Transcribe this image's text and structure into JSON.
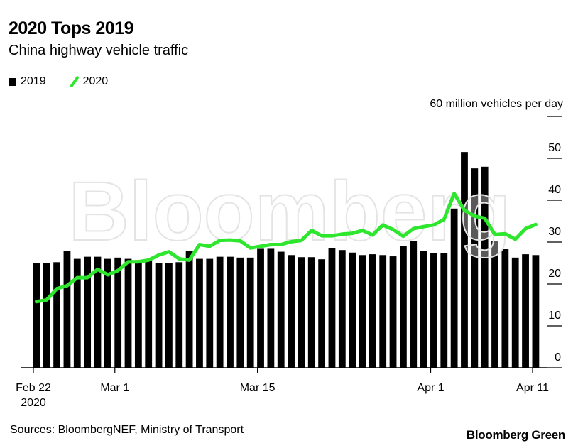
{
  "header": {
    "title": "2020 Tops 2019",
    "subtitle": "China highway vehicle traffic"
  },
  "footer": {
    "source": "Sources: BloombergNEF, Ministry of Transport",
    "brand": "Bloomberg Green"
  },
  "watermark": "Bloomberg",
  "colors": {
    "bars_2019": "#000000",
    "line_2020": "#2ee62e",
    "grid": "#000000"
  },
  "chart_data": {
    "type": "bar+line",
    "title": "2020 Tops 2019",
    "subtitle": "China highway vehicle traffic",
    "ylabel": "60 million vehicles per day",
    "ylim": [
      0,
      60
    ],
    "yticks": [
      0,
      10,
      20,
      30,
      40,
      50,
      60
    ],
    "ytick_labels": [
      "0",
      "10",
      "20",
      "30",
      "40",
      "50",
      "60 million vehicles per day"
    ],
    "x_start": "2020-02-22",
    "x_end": "2020-04-11",
    "xticks": [
      {
        "date": "2020-02-22",
        "label": "Feb 22",
        "sublabel": "2020"
      },
      {
        "date": "2020-03-01",
        "label": "Mar 1"
      },
      {
        "date": "2020-03-15",
        "label": "Mar 15"
      },
      {
        "date": "2020-04-01",
        "label": "Apr 1"
      },
      {
        "date": "2020-04-11",
        "label": "Apr 11"
      }
    ],
    "legend": {
      "position": "top-left"
    },
    "grid": false,
    "series": [
      {
        "name": "2019",
        "type": "bar",
        "values": [
          25.0,
          25.0,
          25.2,
          27.9,
          26.0,
          26.5,
          26.5,
          26.0,
          26.3,
          26.0,
          25.7,
          25.6,
          25.0,
          25.0,
          25.2,
          27.9,
          26.0,
          26.0,
          26.5,
          26.5,
          26.3,
          26.3,
          28.4,
          28.4,
          27.7,
          26.9,
          26.4,
          26.4,
          25.9,
          28.5,
          28.1,
          27.5,
          26.9,
          27.1,
          26.9,
          26.6,
          29.0,
          30.2,
          27.9,
          27.3,
          27.3,
          38.0,
          51.5,
          47.6,
          48.0,
          30.2,
          28.3,
          26.3,
          27.1,
          26.9
        ]
      },
      {
        "name": "2020",
        "type": "line",
        "values": [
          15.8,
          16.2,
          18.9,
          19.6,
          21.5,
          21.5,
          23.5,
          22.2,
          23.2,
          25.3,
          25.3,
          25.7,
          26.9,
          27.7,
          26.0,
          25.7,
          29.4,
          29.0,
          30.4,
          30.5,
          30.3,
          28.6,
          29.0,
          29.4,
          29.4,
          30.1,
          30.4,
          32.8,
          31.5,
          31.5,
          31.9,
          32.1,
          32.8,
          31.7,
          34.1,
          33.0,
          31.4,
          33.2,
          33.7,
          34.1,
          35.4,
          41.6,
          37.6,
          36.2,
          35.7,
          31.8,
          32.0,
          30.7,
          33.2,
          34.2
        ]
      }
    ]
  }
}
